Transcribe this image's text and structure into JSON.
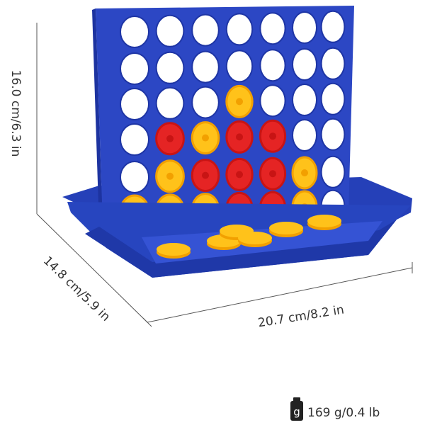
{
  "dimensions": {
    "height": "16.0 cm/6.3 in",
    "depth": "14.8 cm/5.9 in",
    "width": "20.7 cm/8.2 in"
  },
  "weight": {
    "icon": "g",
    "text": "169 g/0.4 lb"
  }
}
